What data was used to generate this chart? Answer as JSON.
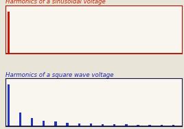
{
  "title1": "Harmonics of a sinusoidal voltage",
  "title2": "Harmonics of a square wave voltage",
  "title1_color": "#cc2200",
  "title2_color": "#2222aa",
  "bg_color": "#e8e4d8",
  "plot_bg_color": "#f8f6ee",
  "grid_color": "#bbbbaa",
  "sine_bar_color": "#cc1100",
  "square_bar_color": "#2233bb",
  "square_n_harmonics": 30,
  "spine_color_top": "#aa1100",
  "spine_color_bot": "#111144",
  "title_fontsize": 6.2,
  "n_gridlines": 5
}
